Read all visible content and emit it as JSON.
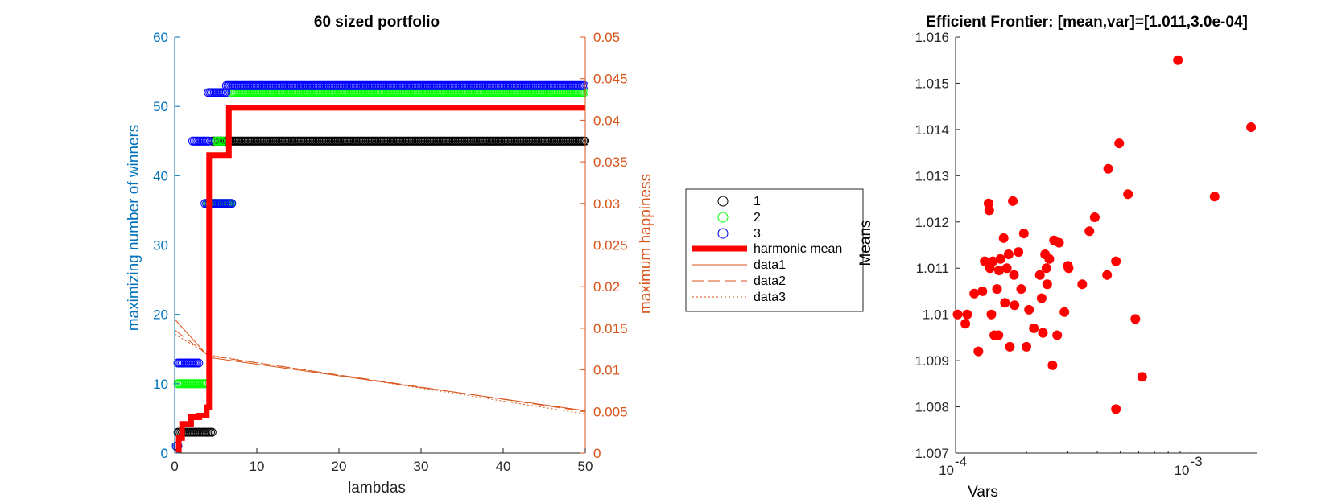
{
  "colors": {
    "left_axis": "#0072bd",
    "right_axis": "#d95319",
    "series1": "#000000",
    "series2": "#00ff00",
    "series3": "#0000ff",
    "harmonic": "#ff0000",
    "thin_lines": "#d95319",
    "scatter": "#ff0000"
  },
  "chart_data": [
    {
      "type": "line",
      "title": "60 sized portfolio",
      "xlabel": "lambdas",
      "ylabel_left": "maximizing number of winners",
      "ylabel_right": "maximum happiness",
      "xlim": [
        0,
        50
      ],
      "ylim_left": [
        0,
        60
      ],
      "ylim_right": [
        0,
        0.05
      ],
      "x_ticks": [
        "0",
        "10",
        "20",
        "30",
        "40",
        "50"
      ],
      "y_left_ticks": [
        "0",
        "10",
        "20",
        "30",
        "40",
        "50",
        "60"
      ],
      "y_right_ticks": [
        "0",
        "0.005",
        "0.01",
        "0.015",
        "0.02",
        "0.025",
        "0.03",
        "0.035",
        "0.04",
        "0.045",
        "0.05"
      ],
      "legend_position": "outside-right",
      "legend": [
        "1",
        "2",
        "3",
        "harmonic mean",
        "data1",
        "data2",
        "data3"
      ],
      "marker_series": [
        {
          "name": "1",
          "axis": "left",
          "segments": [
            {
              "x_from": 0.2,
              "x_to": 0.4,
              "y": 1
            },
            {
              "x_from": 0.4,
              "x_to": 4.6,
              "y": 3
            },
            {
              "x_from": 4.6,
              "x_to": 50,
              "y": 45
            }
          ]
        },
        {
          "name": "2",
          "axis": "left",
          "segments": [
            {
              "x_from": 0.2,
              "x_to": 0.4,
              "y": 1
            },
            {
              "x_from": 0.4,
              "x_to": 4.0,
              "y": 10
            },
            {
              "x_from": 4.0,
              "x_to": 7.0,
              "y": 36
            },
            {
              "x_from": 5.0,
              "x_to": 6.0,
              "y": 45
            },
            {
              "x_from": 7.0,
              "x_to": 50,
              "y": 52
            }
          ]
        },
        {
          "name": "3",
          "axis": "left",
          "segments": [
            {
              "x_from": 0.2,
              "x_to": 0.4,
              "y": 1
            },
            {
              "x_from": 0.4,
              "x_to": 3.0,
              "y": 13
            },
            {
              "x_from": 2.2,
              "x_to": 4.3,
              "y": 45
            },
            {
              "x_from": 3.7,
              "x_to": 7.0,
              "y": 36
            },
            {
              "x_from": 4.1,
              "x_to": 6.3,
              "y": 52
            },
            {
              "x_from": 6.3,
              "x_to": 50,
              "y": 53
            }
          ]
        }
      ],
      "harmonic_mean": {
        "axis": "right",
        "x": [
          0.5,
          0.5,
          0.9,
          0.9,
          2.0,
          2.0,
          3.0,
          3.0,
          3.9,
          3.9,
          4.2,
          4.2,
          6.6,
          6.6,
          50
        ],
        "y": [
          0,
          0.0018,
          0.0018,
          0.0035,
          0.0035,
          0.0043,
          0.0043,
          0.0045,
          0.0045,
          0.0055,
          0.0055,
          0.0358,
          0.0358,
          0.0415,
          0.0415
        ]
      },
      "thin_lines": [
        {
          "name": "data1",
          "axis": "right",
          "x": [
            0,
            4.2,
            50
          ],
          "y": [
            0.0161,
            0.0115,
            0.0051
          ]
        },
        {
          "name": "data2",
          "axis": "right",
          "x": [
            0,
            4.2,
            50
          ],
          "y": [
            0.0148,
            0.0117,
            0.005
          ]
        },
        {
          "name": "data3",
          "axis": "right",
          "x": [
            0,
            4.2,
            50
          ],
          "y": [
            0.0143,
            0.0118,
            0.0047
          ]
        }
      ]
    },
    {
      "type": "scatter",
      "title": "Efficient Frontier: [mean,var]=[1.011,3.0e-04]",
      "xlabel": "Vars",
      "ylabel": "Means",
      "x_scale": "log",
      "xlim": [
        0.0001,
        0.0019
      ],
      "ylim": [
        1.007,
        1.016
      ],
      "y_ticks": [
        "1.007",
        "1.008",
        "1.009",
        "1.01",
        "1.011",
        "1.012",
        "1.013",
        "1.014",
        "1.015",
        "1.016"
      ],
      "x_tick_labels": [
        {
          "base": "10",
          "exp": "-4",
          "value": 0.0001
        },
        {
          "base": "10",
          "exp": "-3",
          "value": 0.001
        }
      ],
      "points": [
        [
          0.000102,
          1.01
        ],
        [
          0.00011,
          1.0098
        ],
        [
          0.000112,
          1.01
        ],
        [
          0.00012,
          1.01045
        ],
        [
          0.000125,
          1.0092
        ],
        [
          0.00013,
          1.0105
        ],
        [
          0.000133,
          1.01115
        ],
        [
          0.000138,
          1.0124
        ],
        [
          0.000139,
          1.01225
        ],
        [
          0.00014,
          1.011
        ],
        [
          0.000142,
          1.01
        ],
        [
          0.000144,
          1.01115
        ],
        [
          0.000146,
          1.00955
        ],
        [
          0.00015,
          1.01055
        ],
        [
          0.000152,
          1.00955
        ],
        [
          0.000153,
          1.01095
        ],
        [
          0.000155,
          1.0112
        ],
        [
          0.00016,
          1.01165
        ],
        [
          0.000162,
          1.01025
        ],
        [
          0.000165,
          1.011
        ],
        [
          0.000168,
          1.0113
        ],
        [
          0.00017,
          1.0093
        ],
        [
          0.000175,
          1.01245
        ],
        [
          0.000177,
          1.01085
        ],
        [
          0.000178,
          1.0102
        ],
        [
          0.000185,
          1.01135
        ],
        [
          0.00019,
          1.01055
        ],
        [
          0.000195,
          1.01175
        ],
        [
          0.0002,
          1.0093
        ],
        [
          0.000205,
          1.0101
        ],
        [
          0.000215,
          1.0097
        ],
        [
          0.000228,
          1.01085
        ],
        [
          0.000232,
          1.01035
        ],
        [
          0.000235,
          1.0096
        ],
        [
          0.00024,
          1.0113
        ],
        [
          0.000243,
          1.011
        ],
        [
          0.000245,
          1.01065
        ],
        [
          0.00025,
          1.0112
        ],
        [
          0.000258,
          1.0089
        ],
        [
          0.000262,
          1.0116
        ],
        [
          0.00027,
          1.00955
        ],
        [
          0.000275,
          1.01155
        ],
        [
          0.00029,
          1.01005
        ],
        [
          0.0003,
          1.01105
        ],
        [
          0.000302,
          1.011
        ],
        [
          0.000345,
          1.01065
        ],
        [
          0.00037,
          1.0118
        ],
        [
          0.00039,
          1.0121
        ],
        [
          0.00044,
          1.01085
        ],
        [
          0.000445,
          1.01315
        ],
        [
          0.00048,
          1.00795
        ],
        [
          0.00048,
          1.01115
        ],
        [
          0.000495,
          1.0137
        ],
        [
          0.00054,
          1.0126
        ],
        [
          0.00058,
          1.0099
        ],
        [
          0.00062,
          1.00865
        ],
        [
          0.00088,
          1.0155
        ],
        [
          0.00126,
          1.01255
        ],
        [
          0.0018,
          1.01405
        ]
      ]
    }
  ]
}
